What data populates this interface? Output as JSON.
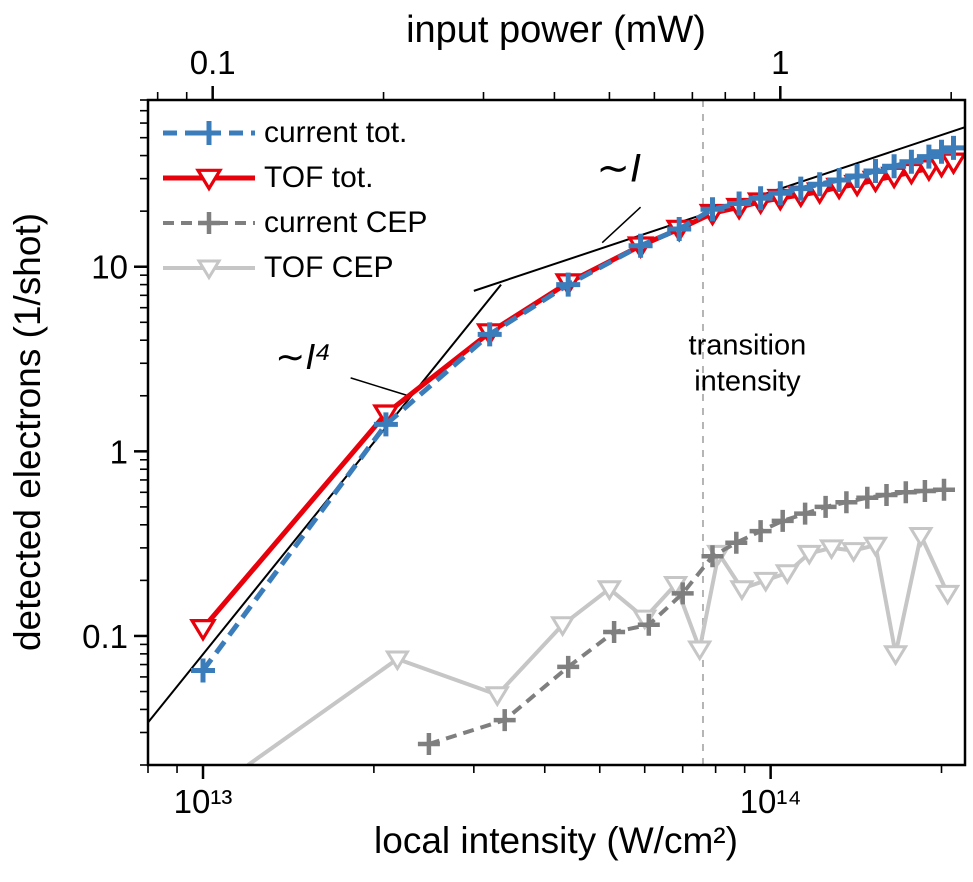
{
  "chart_data": {
    "type": "line",
    "x_scale": "log",
    "y_scale": "log",
    "xlim": [
      8000000000000.0,
      220000000000000.0
    ],
    "ylim": [
      0.02,
      80
    ],
    "grid": false,
    "legend_position": "upper-left",
    "x_axis": {
      "label": "local intensity (W/cm²)",
      "ticks": [
        {
          "value": 10000000000000.0,
          "label": "10¹³"
        },
        {
          "value": 100000000000000.0,
          "label": "10¹⁴"
        }
      ]
    },
    "y_axis": {
      "label": "detected electrons (1/shot)",
      "ticks": [
        {
          "value": 0.1,
          "label": "0.1"
        },
        {
          "value": 1,
          "label": "1"
        },
        {
          "value": 10,
          "label": "10"
        }
      ]
    },
    "top_axis": {
      "label": "input power (mW)",
      "intensity_at_1mW": 104000000000000.0,
      "ticks": [
        {
          "value": 0.1,
          "label": "0.1"
        },
        {
          "value": 1,
          "label": "1"
        }
      ]
    },
    "series": [
      {
        "name": "current-tot",
        "label": "current tot.",
        "color": "#3b7cbb",
        "marker": "plus",
        "marker_size": 12,
        "marker_stroke": 5,
        "dash": "14 8",
        "line_width": 5,
        "x": [
          10000000000000.0,
          21000000000000.0,
          32000000000000.0,
          44000000000000.0,
          59000000000000.0,
          69000000000000.0,
          79000000000000.0,
          88000000000000.0,
          96000000000000.0,
          104000000000000.0,
          113000000000000.0,
          122000000000000.0,
          132000000000000.0,
          142000000000000.0,
          153000000000000.0,
          165000000000000.0,
          177000000000000.0,
          190000000000000.0,
          200000000000000.0,
          210000000000000.0
        ],
        "y": [
          0.065,
          1.4,
          4.3,
          8.0,
          13.0,
          16.0,
          20.5,
          22.0,
          23.5,
          25.0,
          26.5,
          28.0,
          29.5,
          31.0,
          33.0,
          35.0,
          37.0,
          39.5,
          42.0,
          44.0
        ]
      },
      {
        "name": "tof-tot",
        "label": "TOF tot.",
        "color": "#e8000b",
        "marker": "triangle-down",
        "marker_size": 11,
        "marker_stroke": 3.2,
        "dash": null,
        "line_width": 5,
        "x": [
          10000000000000.0,
          21000000000000.0,
          32000000000000.0,
          44000000000000.0,
          59000000000000.0,
          69000000000000.0,
          79000000000000.0,
          88000000000000.0,
          96000000000000.0,
          104000000000000.0,
          113000000000000.0,
          122000000000000.0,
          132000000000000.0,
          142000000000000.0,
          153000000000000.0,
          165000000000000.0,
          177000000000000.0,
          190000000000000.0,
          200000000000000.0,
          210000000000000.0
        ],
        "y": [
          0.11,
          1.6,
          4.4,
          8.2,
          13.0,
          16.0,
          19.5,
          21.0,
          22.5,
          23.5,
          24.5,
          25.5,
          27.0,
          28.0,
          29.5,
          31.0,
          32.5,
          34.0,
          35.5,
          37.0
        ]
      },
      {
        "name": "current-cep",
        "label": "current CEP",
        "color": "#7f7f7f",
        "marker": "plus",
        "marker_size": 11,
        "marker_stroke": 4.5,
        "dash": "11 7",
        "line_width": 4,
        "x": [
          25000000000000.0,
          34000000000000.0,
          44000000000000.0,
          53000000000000.0,
          61000000000000.0,
          70000000000000.0,
          79000000000000.0,
          87000000000000.0,
          96000000000000.0,
          105000000000000.0,
          115000000000000.0,
          125000000000000.0,
          136000000000000.0,
          148000000000000.0,
          160000000000000.0,
          173000000000000.0,
          187000000000000.0,
          202000000000000.0
        ],
        "y": [
          0.026,
          0.035,
          0.068,
          0.105,
          0.115,
          0.17,
          0.27,
          0.32,
          0.37,
          0.42,
          0.46,
          0.5,
          0.53,
          0.56,
          0.58,
          0.6,
          0.61,
          0.62
        ]
      },
      {
        "name": "tof-cep",
        "label": "TOF CEP",
        "color": "#c6c6c6",
        "marker": "triangle-down",
        "marker_size": 10,
        "marker_stroke": 3,
        "dash": null,
        "line_width": 4,
        "line_prefix": [
          12000000000000.0,
          0.02
        ],
        "x": [
          22000000000000.0,
          33000000000000.0,
          43000000000000.0,
          52000000000000.0,
          60000000000000.0,
          68000000000000.0,
          75000000000000.0,
          81000000000000.0,
          89000000000000.0,
          98000000000000.0,
          107000000000000.0,
          117000000000000.0,
          128000000000000.0,
          140000000000000.0,
          153000000000000.0,
          166000000000000.0,
          184000000000000.0,
          205000000000000.0
        ],
        "y": [
          0.075,
          0.048,
          0.115,
          0.18,
          0.125,
          0.19,
          0.085,
          0.28,
          0.18,
          0.2,
          0.22,
          0.28,
          0.3,
          0.29,
          0.31,
          0.08,
          0.35,
          0.17
        ]
      }
    ],
    "guides": [
      {
        "name": "slope-4",
        "x1": 8000000000000.0,
        "y1": 0.034,
        "x2": 33500000000000.0,
        "y2": 8.0,
        "width": 2
      },
      {
        "name": "slope-1",
        "x1": 30000000000000.0,
        "y1": 7.4,
        "x2": 220000000000000.0,
        "y2": 57,
        "width": 2
      }
    ],
    "annotations": [
      {
        "name": "slope-1-label",
        "text": "∼I",
        "x": 54000000000000.0,
        "y": 29,
        "font_size": 40,
        "leader": {
          "x1": 59000000000000.0,
          "y1": 21,
          "x2": 50500000000000.0,
          "y2": 13.5
        }
      },
      {
        "name": "slope-4-label",
        "text": "∼I⁴",
        "x": 15000000000000.0,
        "y": 2.8,
        "font_size": 36,
        "leader": {
          "x1": 18200000000000.0,
          "y1": 2.5,
          "x2": 23000000000000.0,
          "y2": 2.0
        }
      }
    ],
    "transition_line": {
      "x": 76000000000000.0,
      "color": "#b5b5b5",
      "label_lines": [
        "transition",
        "intensity"
      ],
      "label_color": "#9b9b9b",
      "label_x": 91000000000000.0,
      "label_y": 3.35
    }
  }
}
